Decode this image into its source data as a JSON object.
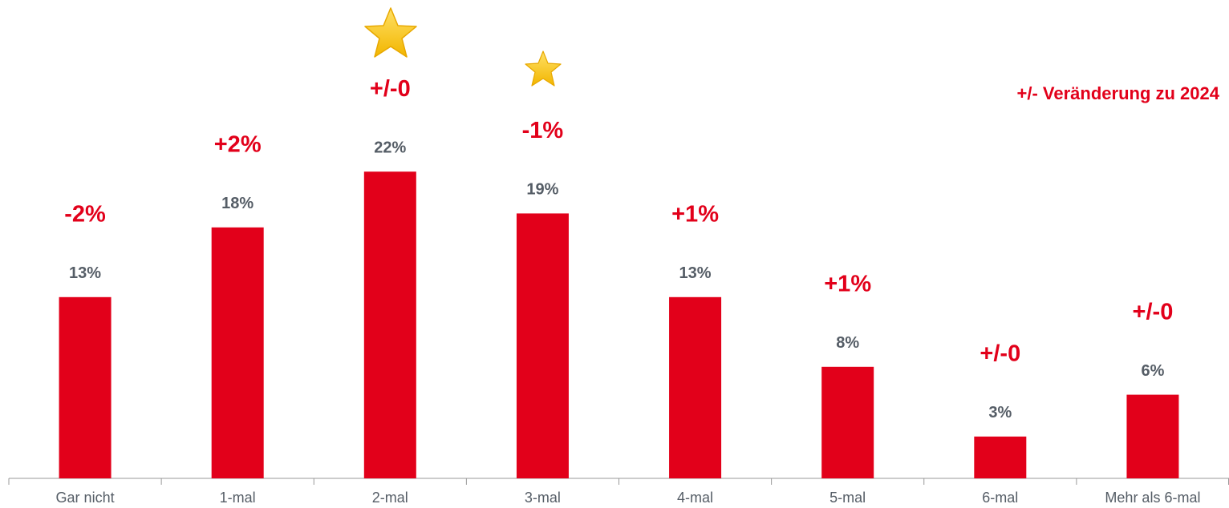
{
  "chart_data": {
    "type": "bar",
    "annotation": "+/- Veränderung zu 2024",
    "categories": [
      "Gar nicht",
      "1-mal",
      "2-mal",
      "3-mal",
      "4-mal",
      "5-mal",
      "6-mal",
      "Mehr als 6-mal"
    ],
    "values": [
      13,
      18,
      22,
      19,
      13,
      8,
      3,
      6
    ],
    "value_labels": [
      "13%",
      "18%",
      "22%",
      "19%",
      "13%",
      "8%",
      "3%",
      "6%"
    ],
    "change_labels": [
      "-2%",
      "+2%",
      "+/-0",
      "-1%",
      "+1%",
      "+1%",
      "+/-0",
      "+/-0"
    ],
    "color": "#e2001a",
    "ylim": [
      0,
      25
    ]
  }
}
